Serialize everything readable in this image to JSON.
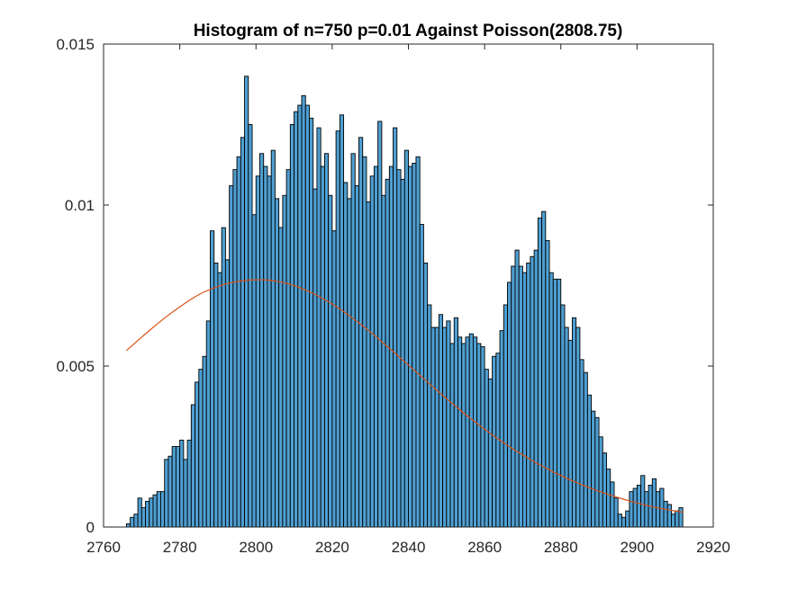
{
  "chart_data": {
    "type": "bar",
    "title": "Histogram of n=750 p=0.01 Against Poisson(2808.75)",
    "xlabel": "",
    "ylabel": "",
    "xlim": [
      2760,
      2920
    ],
    "ylim": [
      0,
      0.015
    ],
    "x_ticks": [
      "2760",
      "2780",
      "2800",
      "2820",
      "2840",
      "2860",
      "2880",
      "2900",
      "2920"
    ],
    "y_ticks": [
      "0",
      "0.005",
      "0.01",
      "0.015"
    ],
    "grid": false,
    "legend": "none",
    "colors": {
      "bars": "#4f9fd2",
      "bar_edge": "#000000",
      "curve": "#d95319",
      "axes": "#262626"
    },
    "bin_width": 1,
    "series": [
      {
        "type": "histogram",
        "x": [
          2766,
          2767,
          2768,
          2769,
          2770,
          2771,
          2772,
          2773,
          2774,
          2775,
          2776,
          2777,
          2778,
          2779,
          2780,
          2781,
          2782,
          2783,
          2784,
          2785,
          2786,
          2787,
          2788,
          2789,
          2790,
          2791,
          2792,
          2793,
          2794,
          2795,
          2796,
          2797,
          2798,
          2799,
          2800,
          2801,
          2802,
          2803,
          2804,
          2805,
          2806,
          2807,
          2808,
          2809,
          2810,
          2811,
          2812,
          2813,
          2814,
          2815,
          2816,
          2817,
          2818,
          2819,
          2820,
          2821,
          2822,
          2823,
          2824,
          2825,
          2826,
          2827,
          2828,
          2829,
          2830,
          2831,
          2832,
          2833,
          2834,
          2835,
          2836,
          2837,
          2838,
          2839,
          2840,
          2841,
          2842,
          2843,
          2844,
          2845,
          2846,
          2847,
          2848,
          2849,
          2850,
          2851,
          2852,
          2853,
          2854,
          2855,
          2856,
          2857,
          2858,
          2859,
          2860,
          2861,
          2862,
          2863,
          2864,
          2865,
          2866,
          2867,
          2868,
          2869,
          2870,
          2871,
          2872,
          2873,
          2874,
          2875,
          2876,
          2877,
          2878,
          2879,
          2880,
          2881,
          2882,
          2883,
          2884,
          2885,
          2886,
          2887,
          2888,
          2889,
          2890,
          2891,
          2892,
          2893,
          2894,
          2895,
          2896,
          2897,
          2898,
          2899,
          2900,
          2901,
          2902,
          2903,
          2904,
          2905,
          2906,
          2907,
          2908,
          2909,
          2910,
          2911
        ],
        "values": [
          0.0001,
          0.0003,
          0.0004,
          0.0009,
          0.0006,
          0.0008,
          0.0009,
          0.001,
          0.0011,
          0.0011,
          0.0021,
          0.0022,
          0.0025,
          0.0025,
          0.0027,
          0.0021,
          0.0027,
          0.0038,
          0.0045,
          0.0049,
          0.0053,
          0.0064,
          0.0092,
          0.0082,
          0.0079,
          0.0093,
          0.0083,
          0.0106,
          0.0111,
          0.0115,
          0.0121,
          0.014,
          0.0125,
          0.0097,
          0.0109,
          0.0116,
          0.0112,
          0.0109,
          0.0117,
          0.0102,
          0.0093,
          0.0103,
          0.0111,
          0.0125,
          0.0129,
          0.0131,
          0.0134,
          0.0131,
          0.0127,
          0.0105,
          0.0124,
          0.0112,
          0.0116,
          0.0103,
          0.0092,
          0.0123,
          0.0128,
          0.0107,
          0.0102,
          0.0116,
          0.0106,
          0.0121,
          0.0115,
          0.0101,
          0.0109,
          0.0112,
          0.0126,
          0.0103,
          0.0108,
          0.0112,
          0.0124,
          0.0111,
          0.0108,
          0.0117,
          0.0112,
          0.0113,
          0.0115,
          0.0094,
          0.0082,
          0.0069,
          0.0062,
          0.0062,
          0.0066,
          0.0062,
          0.0064,
          0.0057,
          0.0065,
          0.0059,
          0.0057,
          0.0059,
          0.006,
          0.0059,
          0.0057,
          0.0056,
          0.0049,
          0.0046,
          0.0053,
          0.0054,
          0.0061,
          0.0069,
          0.0076,
          0.0081,
          0.0086,
          0.0081,
          0.0079,
          0.0082,
          0.0084,
          0.0086,
          0.0096,
          0.0098,
          0.0089,
          0.0079,
          0.0077,
          0.0077,
          0.0069,
          0.0062,
          0.0058,
          0.0065,
          0.0062,
          0.0052,
          0.0048,
          0.0041,
          0.0036,
          0.0034,
          0.0028,
          0.0023,
          0.0018,
          0.0014,
          0.0009,
          0.0004,
          0.0003,
          0.0005,
          0.0011,
          0.0012,
          0.0013,
          0.0016,
          0.0011,
          0.0013,
          0.0015,
          0.0011,
          0.0012,
          0.0008,
          0.0007,
          0.0004,
          0.0005,
          0.0006
        ]
      },
      {
        "type": "line",
        "x": [
          2766,
          2768,
          2770,
          2772,
          2774,
          2776,
          2778,
          2780,
          2782,
          2784,
          2786,
          2788,
          2790,
          2792,
          2794,
          2796,
          2798,
          2800,
          2802,
          2804,
          2806,
          2808,
          2810,
          2812,
          2814,
          2816,
          2818,
          2820,
          2822,
          2824,
          2826,
          2828,
          2830,
          2832,
          2834,
          2836,
          2838,
          2840,
          2842,
          2844,
          2846,
          2848,
          2850,
          2852,
          2854,
          2856,
          2858,
          2860,
          2862,
          2864,
          2866,
          2868,
          2870,
          2872,
          2874,
          2876,
          2878,
          2880,
          2882,
          2884,
          2886,
          2888,
          2890,
          2892,
          2894,
          2896,
          2898,
          2900,
          2902,
          2904,
          2906,
          2908,
          2910,
          2912
        ],
        "values": [
          0.00548,
          0.00569,
          0.0059,
          0.0061,
          0.0063,
          0.00649,
          0.00667,
          0.00684,
          0.007,
          0.00715,
          0.00728,
          0.00738,
          0.00747,
          0.00755,
          0.0076,
          0.00764,
          0.00767,
          0.00768,
          0.00768,
          0.00766,
          0.00762,
          0.00757,
          0.0075,
          0.00741,
          0.00731,
          0.0072,
          0.00706,
          0.00693,
          0.00677,
          0.00661,
          0.00643,
          0.00625,
          0.00606,
          0.00586,
          0.00565,
          0.00545,
          0.00524,
          0.00503,
          0.00482,
          0.00461,
          0.0044,
          0.00419,
          0.00399,
          0.00379,
          0.00359,
          0.0034,
          0.00322,
          0.00304,
          0.00286,
          0.0027,
          0.00254,
          0.00238,
          0.00224,
          0.0021,
          0.00196,
          0.00184,
          0.00171,
          0.0016,
          0.00149,
          0.00139,
          0.00129,
          0.0012,
          0.00111,
          0.00103,
          0.00095,
          0.00088,
          0.00081,
          0.00075,
          0.00069,
          0.00063,
          0.00058,
          0.00054,
          0.0005,
          0.00046
        ]
      }
    ]
  }
}
